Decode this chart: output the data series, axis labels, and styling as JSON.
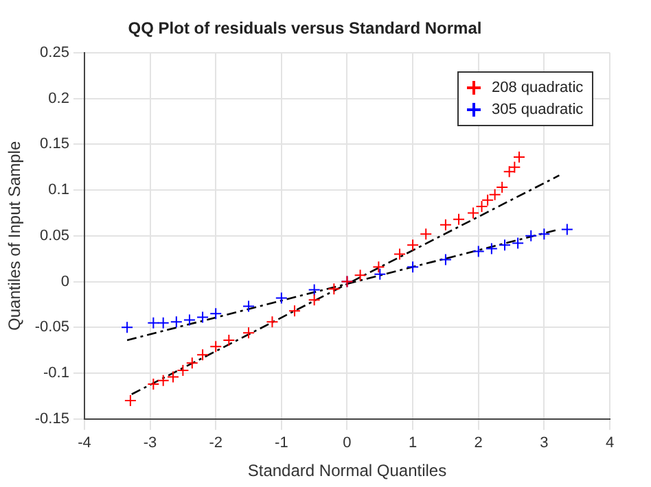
{
  "chart_data": {
    "type": "scatter",
    "title": "QQ Plot of residuals versus Standard Normal",
    "xlabel": "Standard Normal Quantiles",
    "ylabel": "Quantiles of Input Sample",
    "xlim": [
      -4,
      4
    ],
    "xticks": [
      -4,
      -3,
      -2,
      -1,
      0,
      1,
      2,
      3,
      4
    ],
    "ylim": [
      -0.15,
      0.25
    ],
    "yticks": [
      -0.15,
      -0.1,
      -0.05,
      0,
      0.05,
      0.1,
      0.15,
      0.2,
      0.25
    ],
    "grid": true,
    "legend": "top right",
    "marker": "cross",
    "series": [
      {
        "name": "208 quadratic",
        "color": "#ff0000",
        "x": [
          -3.3,
          -2.95,
          -2.8,
          -2.65,
          -2.5,
          -2.36,
          -2.2,
          -2.0,
          -1.8,
          -1.5,
          -1.14,
          -0.8,
          -0.5,
          -0.2,
          0,
          0.2,
          0.48,
          0.8,
          1.0,
          1.2,
          1.5,
          1.7,
          1.92,
          2.05,
          2.14,
          2.25,
          2.36,
          2.47,
          2.55,
          2.62
        ],
        "values": [
          -0.13,
          -0.112,
          -0.108,
          -0.104,
          -0.097,
          -0.089,
          -0.08,
          -0.071,
          -0.064,
          -0.056,
          -0.044,
          -0.032,
          -0.02,
          -0.008,
          0,
          0.007,
          0.016,
          0.03,
          0.04,
          0.052,
          0.062,
          0.068,
          0.075,
          0.082,
          0.089,
          0.095,
          0.103,
          0.12,
          0.125,
          0.136
        ]
      },
      {
        "name": "305 quadratic",
        "color": "#0000ff",
        "x": [
          -3.35,
          -2.95,
          -2.8,
          -2.6,
          -2.4,
          -2.2,
          -2.0,
          -1.5,
          -1.0,
          -0.5,
          0,
          0.5,
          1.0,
          1.5,
          2.0,
          2.2,
          2.4,
          2.6,
          2.8,
          3.0,
          3.35
        ],
        "values": [
          -0.05,
          -0.045,
          -0.045,
          -0.044,
          -0.042,
          -0.039,
          -0.035,
          -0.027,
          -0.018,
          -0.009,
          0,
          0.008,
          0.016,
          0.024,
          0.033,
          0.036,
          0.04,
          0.042,
          0.05,
          0.052,
          0.057
        ]
      },
      {
        "type": "line",
        "color": "#000000",
        "line_style": "dashed",
        "marker": "none",
        "x": [
          -3.28,
          3.23
        ],
        "values": [
          -0.123,
          0.116
        ]
      },
      {
        "type": "line",
        "color": "#000000",
        "line_style": "dashed",
        "marker": "none",
        "x": [
          -3.35,
          3.23
        ],
        "values": [
          -0.064,
          0.057
        ]
      }
    ]
  }
}
